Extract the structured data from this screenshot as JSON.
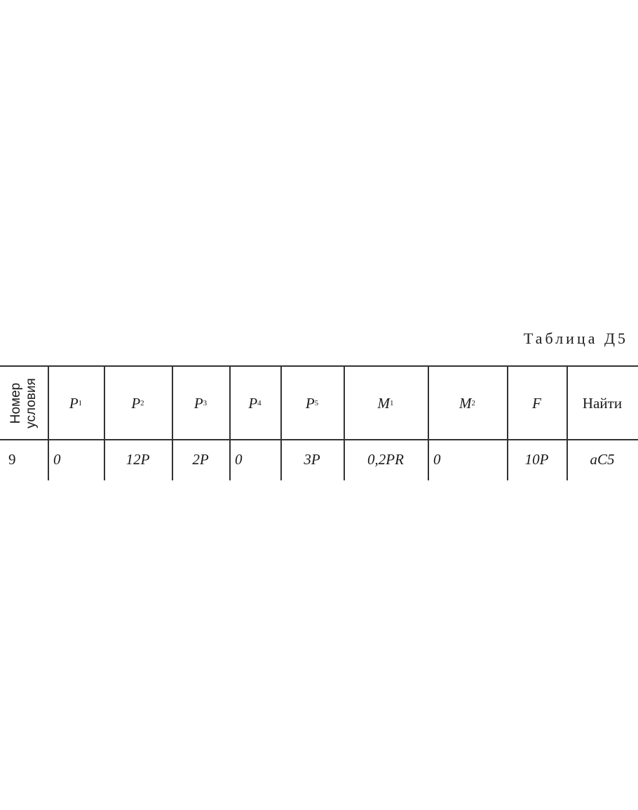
{
  "table": {
    "title": "Таблица Д5",
    "row_header": [
      "Номер",
      "условия"
    ],
    "columns": [
      {
        "sym": "P",
        "sub": "1"
      },
      {
        "sym": "P",
        "sub": "2"
      },
      {
        "sym": "P",
        "sub": "3"
      },
      {
        "sym": "P",
        "sub": "4"
      },
      {
        "sym": "P",
        "sub": "5"
      },
      {
        "sym": "M",
        "sub": "1"
      },
      {
        "sym": "M",
        "sub": "2"
      },
      {
        "sym": "F",
        "sub": ""
      }
    ],
    "find_header": "Найти",
    "rows": [
      {
        "number": "9",
        "values": [
          "0",
          "12P",
          "2P",
          "0",
          "3P",
          "0,2PR",
          "0",
          "10P"
        ],
        "find": "aC5"
      }
    ]
  }
}
